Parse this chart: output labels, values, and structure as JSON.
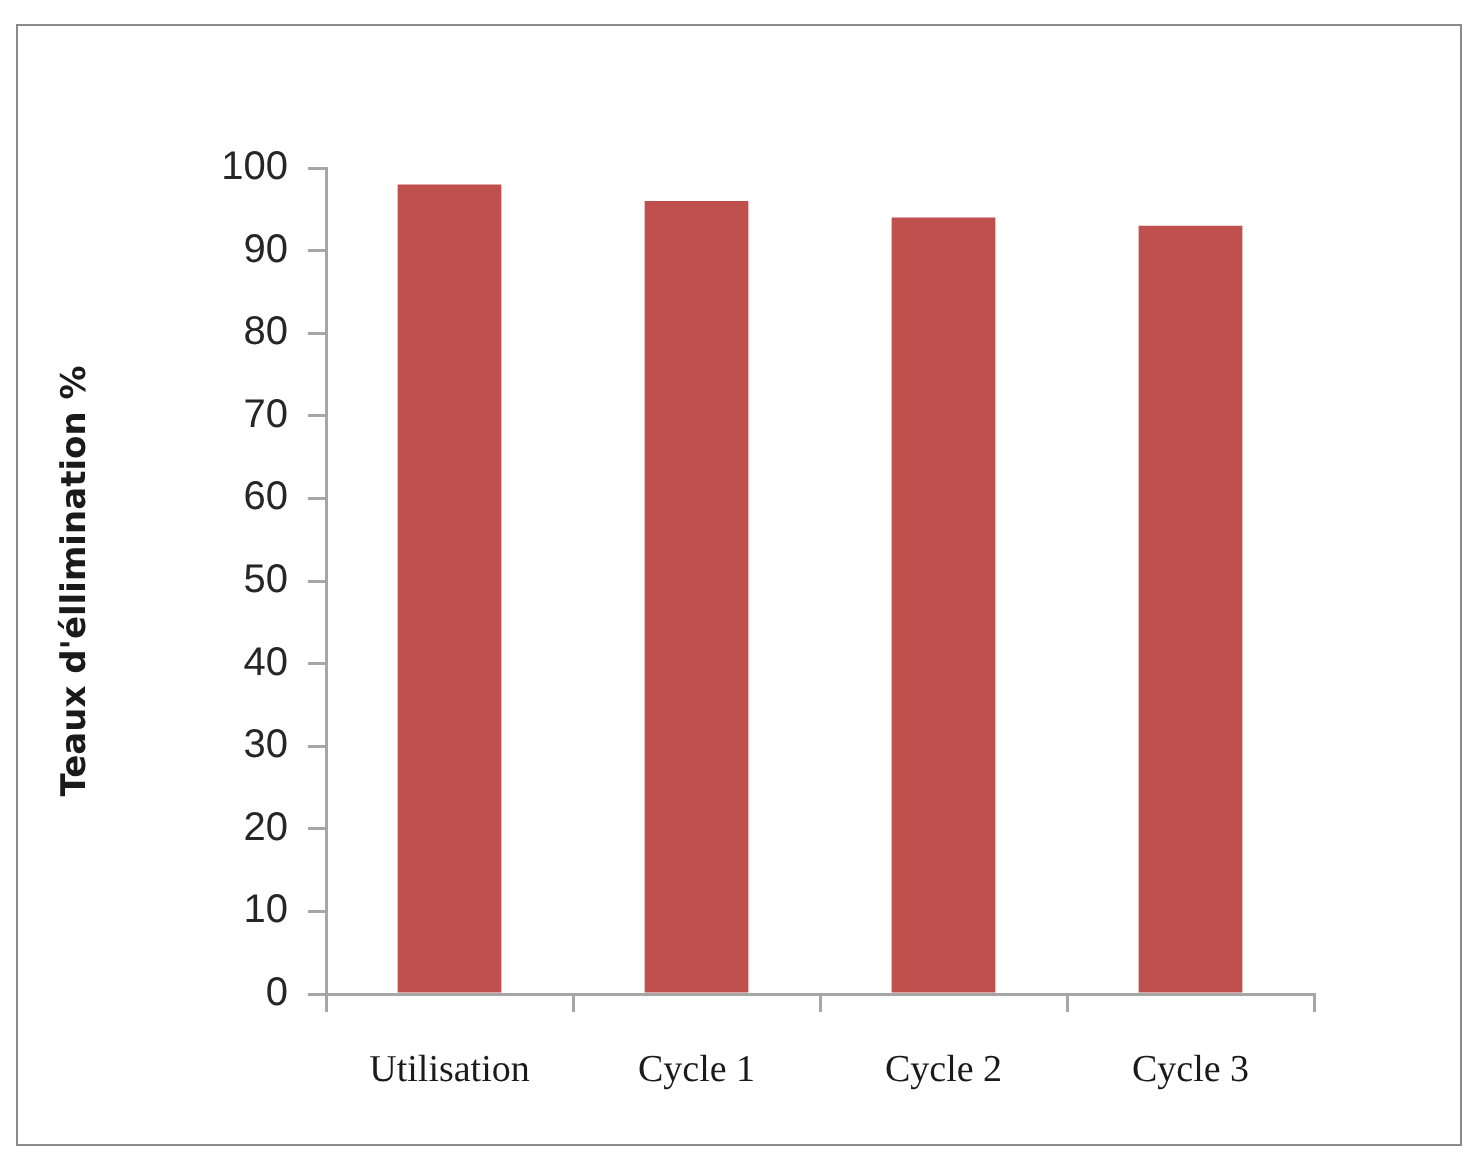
{
  "chart_data": {
    "type": "bar",
    "ylabel": "Teaux d'éllimination %",
    "categories": [
      "Utilisation",
      "Cycle 1",
      "Cycle 2",
      "Cycle 3"
    ],
    "values": [
      98,
      96,
      94,
      93
    ],
    "color": "#c0504d",
    "ylim": [
      0,
      100
    ],
    "yticks": [
      0,
      10,
      20,
      30,
      40,
      50,
      60,
      70,
      80,
      90,
      100
    ]
  }
}
